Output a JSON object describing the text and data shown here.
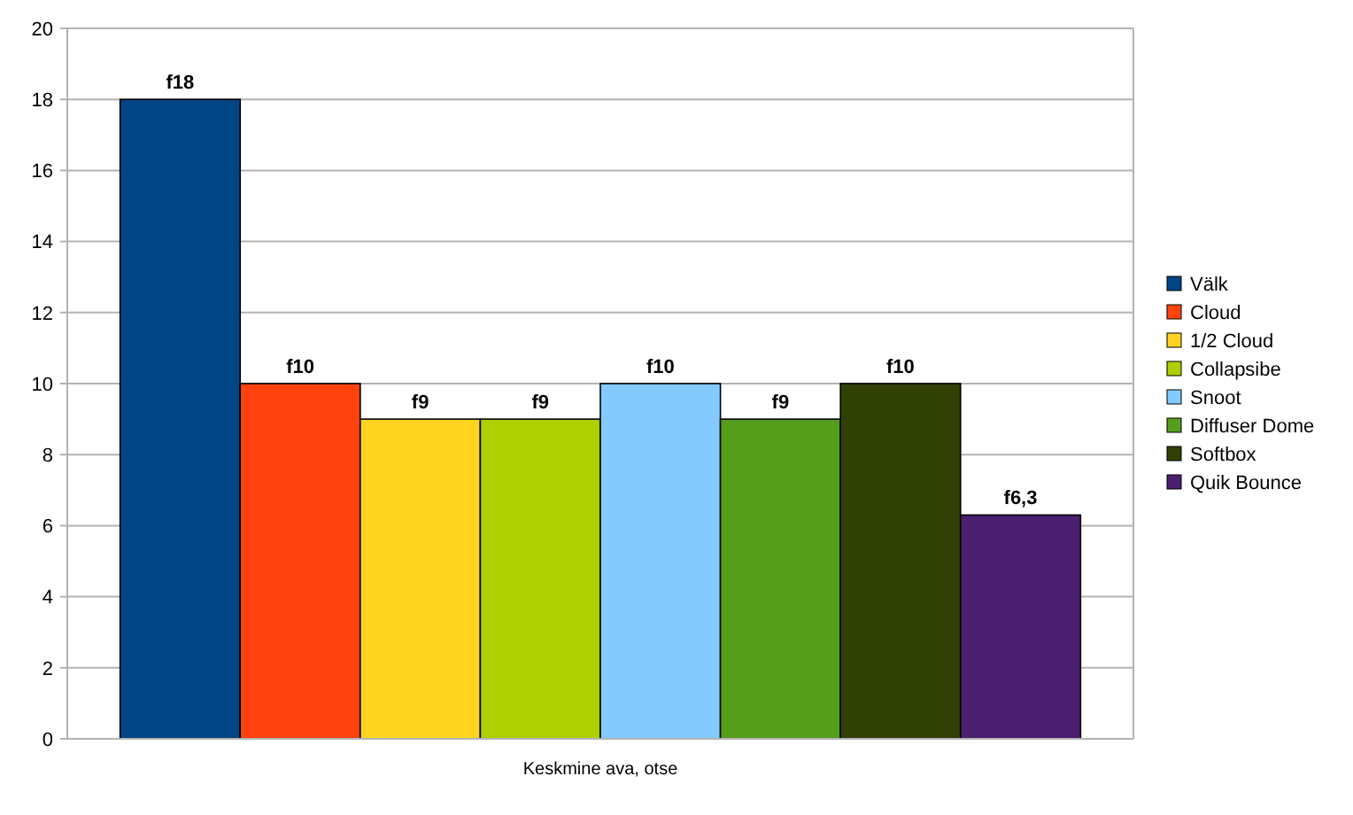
{
  "chart_data": {
    "type": "bar",
    "categories": [
      "Keskmine ava, otse"
    ],
    "series": [
      {
        "name": "Välk",
        "color": "#004586",
        "values": [
          18
        ],
        "value_labels": [
          "f18"
        ]
      },
      {
        "name": "Cloud",
        "color": "#ff420e",
        "values": [
          10
        ],
        "value_labels": [
          "f10"
        ]
      },
      {
        "name": "1/2 Cloud",
        "color": "#ffd320",
        "values": [
          9
        ],
        "value_labels": [
          "f9"
        ]
      },
      {
        "name": "Collapsibe",
        "color": "#aecf00",
        "values": [
          9
        ],
        "value_labels": [
          "f9"
        ]
      },
      {
        "name": "Snoot",
        "color": "#83caff",
        "values": [
          10
        ],
        "value_labels": [
          "f10"
        ]
      },
      {
        "name": "Diffuser Dome",
        "color": "#579d1c",
        "values": [
          9
        ],
        "value_labels": [
          "f9"
        ]
      },
      {
        "name": "Softbox",
        "color": "#314004",
        "values": [
          10
        ],
        "value_labels": [
          "f10"
        ]
      },
      {
        "name": "Quik Bounce",
        "color": "#4b1f6f",
        "values": [
          6.3
        ],
        "value_labels": [
          "f6,3"
        ]
      }
    ],
    "ylim": [
      0,
      20
    ],
    "yticks": [
      0,
      2,
      4,
      6,
      8,
      10,
      12,
      14,
      16,
      18,
      20
    ],
    "grid": "y",
    "legend": "right"
  }
}
